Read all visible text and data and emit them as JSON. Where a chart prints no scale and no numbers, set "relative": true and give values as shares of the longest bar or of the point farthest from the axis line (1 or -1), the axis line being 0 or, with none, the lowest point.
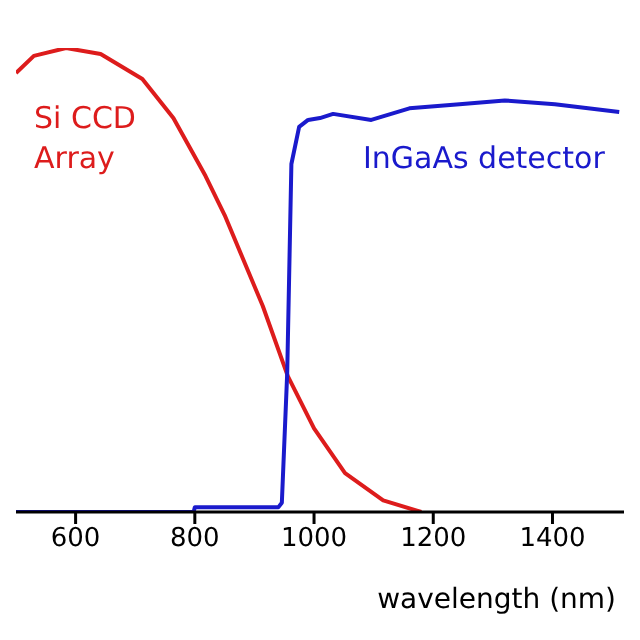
{
  "chart_data": {
    "type": "line",
    "relative": true,
    "xlabel": "wavelength (nm)",
    "xlim": [
      500,
      1520
    ],
    "xticks": [
      600,
      800,
      1000,
      1200,
      1400
    ],
    "marker": "none",
    "line_style": "solid",
    "series": [
      {
        "name": "Si CCD Array",
        "color": "#dd1c1c",
        "x": [
          500,
          530,
          584,
          642,
          712,
          764,
          818,
          850,
          914,
          956,
          1000,
          1052,
          1116,
          1180
        ],
        "values": [
          0.946,
          0.983,
          1,
          0.987,
          0.933,
          0.849,
          0.724,
          0.64,
          0.444,
          0.293,
          0.18,
          0.084,
          0.025,
          0
        ]
      },
      {
        "name": "InGaAs detector",
        "color": "#1a1acc",
        "x": [
          500,
          798,
          800,
          860,
          940,
          946,
          955,
          962,
          975,
          990,
          1010,
          1032,
          1096,
          1160,
          1244,
          1320,
          1404,
          1512
        ],
        "values": [
          0,
          0,
          0.01,
          0.01,
          0.01,
          0.02,
          0.3,
          0.75,
          0.83,
          0.845,
          0.849,
          0.858,
          0.845,
          0.87,
          0.879,
          0.887,
          0.879,
          0.862
        ]
      }
    ]
  }
}
